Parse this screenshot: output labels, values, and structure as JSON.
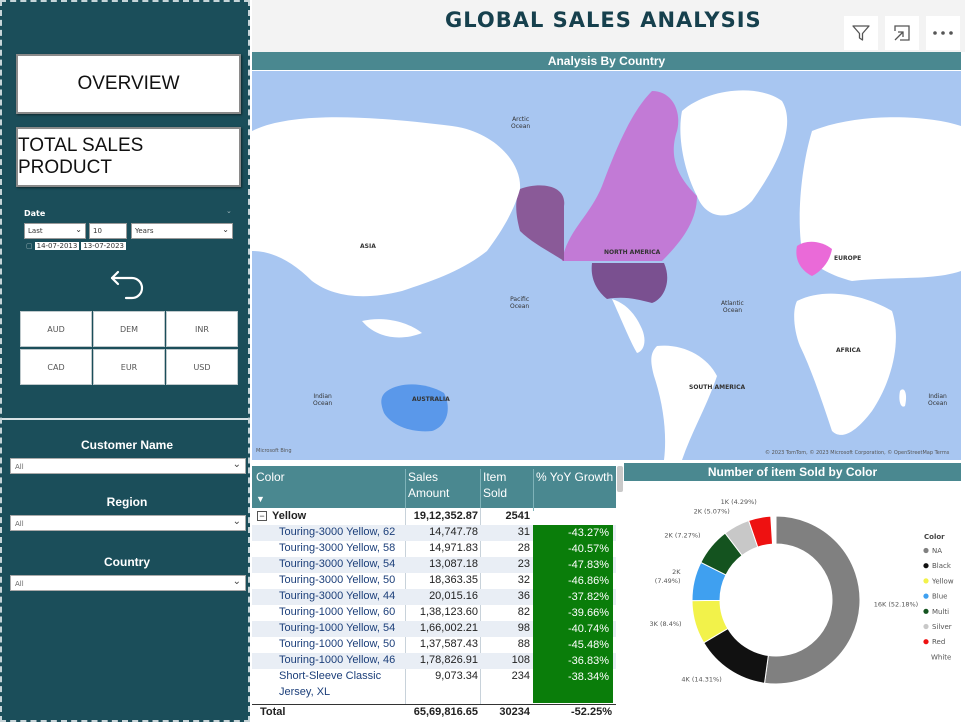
{
  "sidebar": {
    "overview_label": "OVERVIEW",
    "total_sales_label": "TOTAL SALES PRODUCT",
    "date": {
      "label": "Date",
      "relative": "Last",
      "count": "10",
      "unit": "Years",
      "range_start": "14-07-2013",
      "range_end": "13-07-2023"
    },
    "currencies": [
      "AUD",
      "DEM",
      "INR",
      "CAD",
      "EUR",
      "USD"
    ],
    "filters": [
      {
        "title": "Customer Name",
        "value": "All"
      },
      {
        "title": "Region",
        "value": "All"
      },
      {
        "title": "Country",
        "value": "All"
      }
    ]
  },
  "header": {
    "title": "GLOBAL SALES ANALYSIS",
    "icons": [
      "filter-icon",
      "focus-mode-icon",
      "more-options-icon"
    ]
  },
  "map": {
    "title": "Analysis By Country",
    "labels": {
      "arctic_ocean": "Arctic\nOcean",
      "asia": "ASIA",
      "north_america": "NORTH AMERICA",
      "europe": "EUROPE",
      "pacific_ocean": "Pacific\nOcean",
      "atlantic_ocean": "Atlantic\nOcean",
      "africa": "AFRICA",
      "australia": "AUSTRALIA",
      "south_america": "SOUTH AMERICA",
      "indian_ocean_left": "Indian\nOcean",
      "indian_ocean_right": "Indian\nOcean"
    },
    "logo": "Microsoft Bing",
    "credit": "© 2023 TomTom, © 2023 Microsoft Corporation, © OpenStreetMap  Terms"
  },
  "table": {
    "headers": [
      "Color",
      "Sales\nAmount",
      "Item\nSold",
      "% YoY Growth"
    ],
    "group": {
      "label": "Yellow",
      "sales": "19,12,352.87",
      "items": "2541"
    },
    "rows": [
      {
        "name": "Touring-3000 Yellow, 62",
        "sales": "14,747.78",
        "items": "31",
        "growth": "-43.27%"
      },
      {
        "name": "Touring-3000 Yellow, 58",
        "sales": "14,971.83",
        "items": "28",
        "growth": "-40.57%"
      },
      {
        "name": "Touring-3000 Yellow, 54",
        "sales": "13,087.18",
        "items": "23",
        "growth": "-47.83%"
      },
      {
        "name": "Touring-3000 Yellow, 50",
        "sales": "18,363.35",
        "items": "32",
        "growth": "-46.86%"
      },
      {
        "name": "Touring-3000 Yellow, 44",
        "sales": "20,015.16",
        "items": "36",
        "growth": "-37.82%"
      },
      {
        "name": "Touring-1000 Yellow, 60",
        "sales": "1,38,123.60",
        "items": "82",
        "growth": "-39.66%"
      },
      {
        "name": "Touring-1000 Yellow, 54",
        "sales": "1,66,002.21",
        "items": "98",
        "growth": "-40.74%"
      },
      {
        "name": "Touring-1000 Yellow, 50",
        "sales": "1,37,587.43",
        "items": "88",
        "growth": "-45.48%"
      },
      {
        "name": "Touring-1000 Yellow, 46",
        "sales": "1,78,826.91",
        "items": "108",
        "growth": "-36.83%"
      }
    ],
    "last_row": {
      "name_line1": "Short-Sleeve Classic",
      "name_line2": "Jersey, XL",
      "sales": "9,073.34",
      "items": "234",
      "growth": "-38.34%"
    },
    "total": {
      "label": "Total",
      "sales": "65,69,816.65",
      "items": "30234",
      "growth": "-52.25%"
    }
  },
  "chart_data": {
    "type": "pie",
    "title": "Number of item Sold by Color",
    "legend_title": "Color",
    "legend_position": "right",
    "slices": [
      {
        "name": "NA",
        "value": 16000,
        "label": "16K (52.18%)",
        "color": "#808080"
      },
      {
        "name": "Black",
        "value": 4000,
        "label": "4K (14.31%)",
        "color": "#111111"
      },
      {
        "name": "Yellow",
        "value": 3000,
        "label": "3K (8.4%)",
        "color": "#f2f24a"
      },
      {
        "name": "Blue",
        "value": 2000,
        "label": "2K\n(7.49%)",
        "color": "#3fa0f0"
      },
      {
        "name": "Multi",
        "value": 2000,
        "label": "2K (7.27%)",
        "color": "#14531f"
      },
      {
        "name": "Silver",
        "value": 2000,
        "label": "2K (5.07%)",
        "color": "#c8c8c8"
      },
      {
        "name": "Red",
        "value": 1000,
        "label": "1K (4.29%)",
        "color": "#ee1111"
      },
      {
        "name": "White",
        "value": 0,
        "label": "",
        "color": "#ffffff"
      }
    ],
    "percentages": [
      52.18,
      14.31,
      8.4,
      7.49,
      7.27,
      5.07,
      4.29,
      0
    ]
  }
}
